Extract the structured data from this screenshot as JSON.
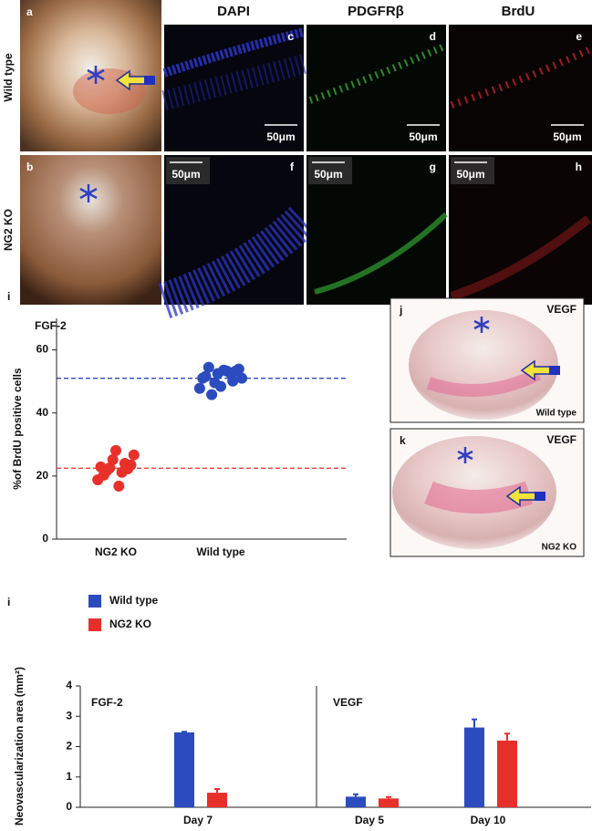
{
  "figure": {
    "columns": [
      "DAPI",
      "PDGFRβ",
      "BrdU"
    ],
    "rows": [
      "Wild type",
      "NG2 KO"
    ],
    "panels": [
      "a",
      "b",
      "c",
      "d",
      "e",
      "f",
      "g",
      "h"
    ],
    "scale_bar": "50μm",
    "photos": [
      {
        "letter": "j",
        "label": "VEGF",
        "group": "Wild type"
      },
      {
        "letter": "k",
        "label": "VEGF",
        "group": "NG2 KO"
      }
    ]
  },
  "chart_data": [
    {
      "type": "scatter",
      "panel": "i",
      "title": "FGF-2",
      "y_label": "%of BrdU positive cells",
      "categories": [
        "NG2 KO",
        "Wild type"
      ],
      "series": [
        {
          "color": "#e8302a",
          "mean": 22.5,
          "values": [
            18.8,
            16.8,
            22.9,
            21.2,
            20.3,
            24,
            21.7,
            22.3,
            22.6,
            23.5,
            25.2,
            26.7,
            28.1
          ]
        },
        {
          "color": "#2b4bbf",
          "mean": 51,
          "values": [
            47.8,
            48.4,
            51,
            52.5,
            53.9,
            49.6,
            53.3,
            45.8,
            50.1,
            54.5,
            52.8,
            51.6,
            53.3,
            51,
            53.6
          ]
        }
      ],
      "ylim": [
        0,
        70
      ],
      "yticks": [
        0,
        20,
        40,
        60
      ]
    },
    {
      "type": "bar",
      "panel": "i",
      "y_label": "Neovascularization area (mm²)",
      "panels": [
        {
          "label": "FGF-2",
          "categories": [
            "Day 7"
          ]
        },
        {
          "label": "VEGF",
          "categories": [
            "Day 5",
            "Day 10"
          ]
        }
      ],
      "series": [
        {
          "name": "Wild type",
          "color": "#2b4bbf",
          "values": [
            2.47,
            0.35,
            2.63
          ],
          "errors": [
            0.02,
            0.08,
            0.27
          ]
        },
        {
          "name": "NG2 KO",
          "color": "#e8302a",
          "values": [
            0.48,
            0.29,
            2.2
          ],
          "errors": [
            0.12,
            0.05,
            0.23
          ]
        }
      ],
      "ylim": [
        0,
        4
      ],
      "yticks": [
        0,
        1,
        2,
        3,
        4
      ]
    }
  ]
}
